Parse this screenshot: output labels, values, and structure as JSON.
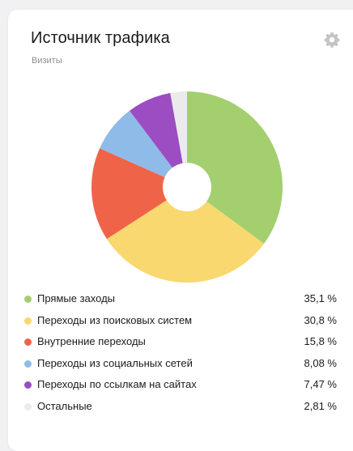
{
  "widget": {
    "title": "Источник трафика",
    "subtitle": "Визиты",
    "settings_icon": "gear-icon"
  },
  "chart_data": {
    "type": "pie",
    "donut": true,
    "categories": [
      "Прямые заходы",
      "Переходы из поисковых систем",
      "Внутренние переходы",
      "Переходы из социальных сетей",
      "Переходы по ссылкам на сайтах",
      "Остальные"
    ],
    "values": [
      35.1,
      30.8,
      15.8,
      8.08,
      7.47,
      2.81
    ],
    "value_labels": [
      "35,1 %",
      "30,8 %",
      "15,8 %",
      "8,08 %",
      "7,47 %",
      "2,81 %"
    ],
    "colors": [
      "#a3cf6e",
      "#f9d86f",
      "#ef6449",
      "#8fbbe8",
      "#9b4dc1",
      "#ebebeb"
    ],
    "legend_position": "bottom"
  }
}
